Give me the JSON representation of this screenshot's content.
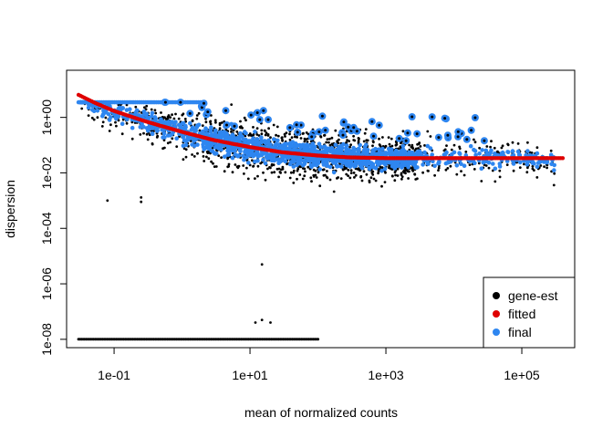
{
  "chart_data": {
    "type": "scatter",
    "title": "",
    "xlabel": "mean of normalized counts",
    "ylabel": "dispersion",
    "xscale": "log",
    "yscale": "log",
    "xlim": [
      0.02,
      600000
    ],
    "ylim": [
      5e-09,
      50
    ],
    "x_ticks": [
      {
        "value": 0.1,
        "label": "1e-01"
      },
      {
        "value": 10,
        "label": "1e+01"
      },
      {
        "value": 1000,
        "label": "1e+03"
      },
      {
        "value": 100000,
        "label": "1e+05"
      }
    ],
    "y_ticks": [
      {
        "value": 1e-08,
        "label": "1e-08"
      },
      {
        "value": 1e-06,
        "label": "1e-06"
      },
      {
        "value": 0.0001,
        "label": "1e-04"
      },
      {
        "value": 0.01,
        "label": "1e-02"
      },
      {
        "value": 1,
        "label": "1e+00"
      }
    ],
    "grid": false,
    "legend_position": "bottom-right",
    "series": [
      {
        "name": "gene-est",
        "color": "#000000",
        "marker": "point"
      },
      {
        "name": "fitted",
        "color": "#DF0000",
        "marker": "point"
      },
      {
        "name": "final",
        "color": "#2E86F0",
        "marker": "point"
      }
    ],
    "fitted_curve": [
      [
        0.03,
        6.5
      ],
      [
        0.05,
        3.5
      ],
      [
        0.1,
        1.7
      ],
      [
        0.3,
        0.7
      ],
      [
        1,
        0.3
      ],
      [
        3,
        0.15
      ],
      [
        10,
        0.085
      ],
      [
        30,
        0.055
      ],
      [
        100,
        0.042
      ],
      [
        300,
        0.036
      ],
      [
        1000,
        0.034
      ],
      [
        10000,
        0.034
      ],
      [
        100000,
        0.034
      ],
      [
        400000,
        0.034
      ]
    ],
    "features": {
      "gene_est_zero_dispersion_value": 1e-08,
      "gene_est_zero_dispersion_x_range": [
        0.03,
        100
      ],
      "final_upper_bound_value": 3.5,
      "final_upper_bound_x_range": [
        0.03,
        2
      ],
      "isolated_gene_est_points": [
        [
          0.08,
          0.001
        ],
        [
          0.25,
          0.0009
        ],
        [
          0.25,
          0.0013
        ],
        [
          15,
          5e-06
        ],
        [
          12,
          4e-08
        ],
        [
          15,
          5e-08
        ],
        [
          20,
          4e-08
        ]
      ]
    }
  }
}
